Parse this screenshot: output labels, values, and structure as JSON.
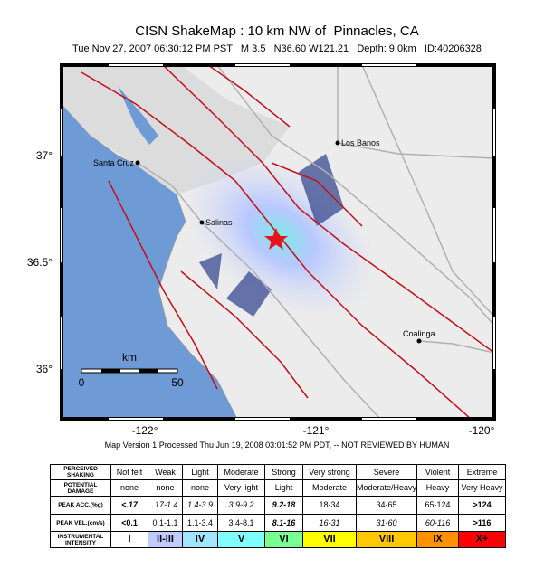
{
  "title": "CISN ShakeMap : 10 km NW of  Pinnacles, CA",
  "subtitle": "Tue Nov 27, 2007 06:30:12 PM PST   M 3.5   N36.60 W121.21   Depth: 9.0km   ID:40206328",
  "map": {
    "lat_labels": [
      "37°",
      "36.5°",
      "36°"
    ],
    "lon_labels": [
      "-122°",
      "-121°",
      "-120°"
    ],
    "places": [
      "Los Banos",
      "Santa Cruz",
      "Salinas",
      "Coalinga"
    ],
    "scale_bar": {
      "unit": "km",
      "labels": [
        "0",
        "50"
      ]
    }
  },
  "footer": "Map Version 1 Processed Thu Jun 19, 2008 03:01:52 PM PDT, -- NOT REVIEWED BY HUMAN",
  "table": {
    "rows": [
      [
        "PERCEIVED SHAKING",
        "Not felt",
        "Weak",
        "Light",
        "Moderate",
        "Strong",
        "Very strong",
        "Severe",
        "Violent",
        "Extreme"
      ],
      [
        "POTENTIAL DAMAGE",
        "none",
        "none",
        "none",
        "Very light",
        "Light",
        "Moderate",
        "Moderate/Heavy",
        "Heavy",
        "Very Heavy"
      ],
      [
        "PEAK ACC.(%g)",
        "<.17",
        ".17-1.4",
        "1.4-3.9",
        "3.9-9.2",
        "9.2-18",
        "18-34",
        "34-65",
        "65-124",
        ">124"
      ],
      [
        "PEAK VEL.(cm/s)",
        "<0.1",
        "0.1-1.1",
        "1.1-3.4",
        "3.4-8.1",
        "8.1-16",
        "16-31",
        "31-60",
        "60-116",
        ">116"
      ],
      [
        "INSTRUMENTAL INTENSITY",
        "I",
        "II-III",
        "IV",
        "V",
        "VI",
        "VII",
        "VIII",
        "IX",
        "X+"
      ]
    ]
  }
}
